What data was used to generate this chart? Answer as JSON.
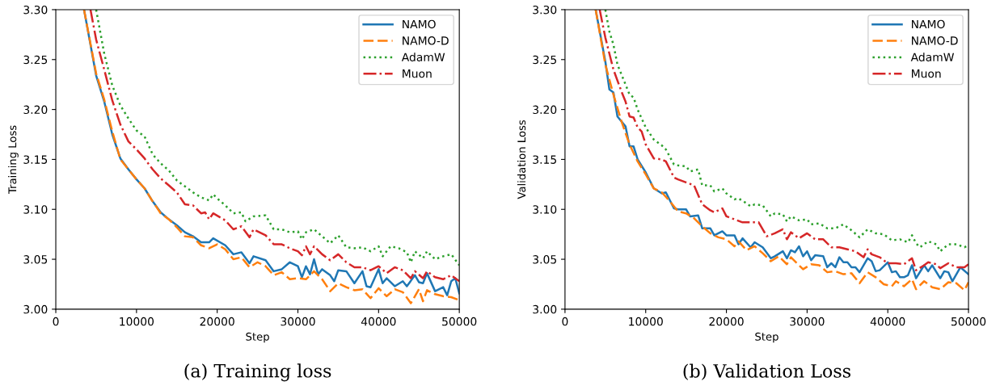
{
  "chart_data": [
    {
      "type": "line",
      "title": "(a) Training loss",
      "xlabel": "Step",
      "ylabel": "Training Loss",
      "xlim": [
        0,
        50000
      ],
      "ylim": [
        3.0,
        3.3
      ],
      "xticks": [
        0,
        10000,
        20000,
        30000,
        40000,
        50000
      ],
      "yticks": [
        {
          "value": 3.0,
          "label": "3.00"
        },
        {
          "value": 3.05,
          "label": "3.05"
        },
        {
          "value": 3.1,
          "label": "3.10"
        },
        {
          "value": 3.15,
          "label": "3.15"
        },
        {
          "value": 3.2,
          "label": "3.20"
        },
        {
          "value": 3.25,
          "label": "3.25"
        },
        {
          "value": 3.3,
          "label": "3.30"
        }
      ],
      "grid": false,
      "legend": "top right",
      "series": [
        {
          "name": "NAMO",
          "color": "#1f77b4",
          "line_style": "solid",
          "x": [
            3500,
            5000,
            6000,
            7000,
            8000,
            9000,
            10000,
            11000,
            12000,
            13000,
            14000,
            15000,
            16000,
            17000,
            18000,
            19000,
            19500,
            21000,
            22000,
            23000,
            24000,
            24500,
            26000,
            27000,
            28000,
            29000,
            30000,
            30500,
            31000,
            31500,
            32000,
            32500,
            33000,
            34000,
            34500,
            35000,
            36000,
            37000,
            38000,
            38500,
            39000,
            40000,
            40500,
            41000,
            42000,
            43000,
            43500,
            44500,
            45000,
            45500,
            46000,
            47000,
            48000,
            48500,
            49000,
            49500,
            50000
          ],
          "values": [
            3.3,
            3.234,
            3.208,
            3.175,
            3.151,
            3.14,
            3.13,
            3.121,
            3.108,
            3.097,
            3.09,
            3.084,
            3.077,
            3.073,
            3.067,
            3.067,
            3.071,
            3.064,
            3.055,
            3.057,
            3.046,
            3.053,
            3.049,
            3.038,
            3.04,
            3.047,
            3.043,
            3.032,
            3.043,
            3.035,
            3.05,
            3.035,
            3.04,
            3.034,
            3.028,
            3.039,
            3.038,
            3.026,
            3.038,
            3.023,
            3.022,
            3.04,
            3.026,
            3.031,
            3.023,
            3.028,
            3.023,
            3.034,
            3.027,
            3.026,
            3.036,
            3.018,
            3.022,
            3.014,
            3.028,
            3.031,
            3.016
          ]
        },
        {
          "name": "NAMO-D",
          "color": "#ff7f0e",
          "line_style": "dashed",
          "x": [
            3500,
            5000,
            6000,
            7000,
            8000,
            9000,
            10000,
            11000,
            12000,
            13000,
            14000,
            15000,
            16000,
            17000,
            18000,
            19000,
            20000,
            21000,
            22000,
            23000,
            24000,
            25000,
            26000,
            27000,
            28000,
            29000,
            30000,
            31000,
            32000,
            33000,
            34000,
            35000,
            36000,
            37000,
            38000,
            39000,
            40000,
            41000,
            42000,
            43000,
            44000,
            45000,
            45500,
            46000,
            47000,
            48000,
            49000,
            50000
          ],
          "values": [
            3.3,
            3.236,
            3.21,
            3.178,
            3.15,
            3.14,
            3.13,
            3.121,
            3.108,
            3.096,
            3.09,
            3.082,
            3.073,
            3.072,
            3.064,
            3.061,
            3.065,
            3.06,
            3.05,
            3.052,
            3.042,
            3.047,
            3.043,
            3.034,
            3.037,
            3.03,
            3.031,
            3.03,
            3.038,
            3.03,
            3.018,
            3.026,
            3.022,
            3.019,
            3.02,
            3.011,
            3.021,
            3.013,
            3.02,
            3.017,
            3.006,
            3.02,
            3.008,
            3.019,
            3.015,
            3.013,
            3.012,
            3.009
          ]
        },
        {
          "name": "AdamW",
          "color": "#2ca02c",
          "line_style": "dotted",
          "x": [
            5000,
            6000,
            7000,
            8000,
            9000,
            10000,
            11000,
            12000,
            13000,
            14000,
            15000,
            16000,
            17000,
            18000,
            19000,
            19500,
            20000,
            21000,
            22000,
            23000,
            23500,
            24500,
            26000,
            27000,
            28000,
            29000,
            30000,
            30500,
            31000,
            32000,
            33000,
            34000,
            35000,
            36000,
            37000,
            38000,
            39000,
            40000,
            40500,
            41500,
            42500,
            43500,
            44000,
            44500,
            45500,
            46000,
            47000,
            48000,
            49000,
            50000
          ],
          "values": [
            3.3,
            3.256,
            3.224,
            3.204,
            3.191,
            3.179,
            3.173,
            3.155,
            3.146,
            3.139,
            3.129,
            3.123,
            3.117,
            3.112,
            3.109,
            3.115,
            3.111,
            3.104,
            3.096,
            3.097,
            3.088,
            3.093,
            3.094,
            3.08,
            3.08,
            3.077,
            3.078,
            3.07,
            3.077,
            3.08,
            3.073,
            3.066,
            3.074,
            3.062,
            3.061,
            3.062,
            3.058,
            3.063,
            3.053,
            3.063,
            3.061,
            3.057,
            3.047,
            3.058,
            3.051,
            3.058,
            3.05,
            3.053,
            3.055,
            3.044
          ]
        },
        {
          "name": "Muon",
          "color": "#d62728",
          "line_style": "dashdot",
          "x": [
            4300,
            5000,
            6000,
            7000,
            8000,
            9000,
            10000,
            11000,
            12000,
            13000,
            14000,
            15000,
            16000,
            17000,
            18000,
            18500,
            19000,
            19500,
            21000,
            22000,
            23000,
            24000,
            24500,
            26000,
            27000,
            28000,
            29000,
            30000,
            30500,
            31000,
            31500,
            32000,
            33000,
            34000,
            35000,
            36000,
            37000,
            38000,
            39000,
            40000,
            41000,
            42000,
            43000,
            44000,
            44500,
            45500,
            46000,
            47000,
            48000,
            49000,
            50000
          ],
          "values": [
            3.3,
            3.27,
            3.24,
            3.209,
            3.185,
            3.168,
            3.16,
            3.151,
            3.14,
            3.131,
            3.124,
            3.117,
            3.105,
            3.104,
            3.096,
            3.097,
            3.09,
            3.096,
            3.089,
            3.08,
            3.083,
            3.072,
            3.08,
            3.074,
            3.065,
            3.065,
            3.061,
            3.058,
            3.054,
            3.063,
            3.055,
            3.063,
            3.055,
            3.049,
            3.055,
            3.047,
            3.042,
            3.042,
            3.039,
            3.043,
            3.036,
            3.042,
            3.039,
            3.031,
            3.038,
            3.031,
            3.038,
            3.032,
            3.03,
            3.034,
            3.028
          ]
        }
      ]
    },
    {
      "type": "line",
      "title": "(b) Validation Loss",
      "xlabel": "Step",
      "ylabel": "Validation Loss",
      "xlim": [
        0,
        50000
      ],
      "ylim": [
        3.0,
        3.3
      ],
      "xticks": [
        0,
        10000,
        20000,
        30000,
        40000,
        50000
      ],
      "yticks": [
        {
          "value": 3.0,
          "label": "3.00"
        },
        {
          "value": 3.05,
          "label": "3.05"
        },
        {
          "value": 3.1,
          "label": "3.10"
        },
        {
          "value": 3.15,
          "label": "3.15"
        },
        {
          "value": 3.2,
          "label": "3.20"
        },
        {
          "value": 3.25,
          "label": "3.25"
        },
        {
          "value": 3.3,
          "label": "3.30"
        }
      ],
      "grid": false,
      "legend": "top right",
      "series": [
        {
          "name": "NAMO",
          "color": "#1f77b4",
          "line_style": "solid",
          "x": [
            3800,
            5000,
            5500,
            6000,
            6500,
            7500,
            8000,
            8500,
            9000,
            10000,
            11000,
            12000,
            12500,
            13500,
            14000,
            15000,
            15500,
            16500,
            17000,
            18000,
            18500,
            19500,
            20000,
            21000,
            21500,
            22000,
            23000,
            23500,
            24500,
            25500,
            26000,
            27000,
            27500,
            28000,
            28500,
            29000,
            29500,
            30000,
            30500,
            31000,
            32000,
            32500,
            33000,
            33500,
            34000,
            34500,
            35000,
            35500,
            36000,
            36500,
            37500,
            38000,
            38500,
            39000,
            40000,
            40500,
            41000,
            41500,
            42000,
            42500,
            43000,
            43500,
            44500,
            45000,
            45500,
            46500,
            47000,
            47500,
            48000,
            49000,
            50000
          ],
          "values": [
            3.3,
            3.248,
            3.22,
            3.217,
            3.193,
            3.183,
            3.163,
            3.163,
            3.15,
            3.137,
            3.121,
            3.116,
            3.117,
            3.101,
            3.1,
            3.1,
            3.093,
            3.094,
            3.081,
            3.081,
            3.074,
            3.078,
            3.074,
            3.074,
            3.065,
            3.071,
            3.062,
            3.067,
            3.062,
            3.051,
            3.053,
            3.058,
            3.051,
            3.059,
            3.057,
            3.063,
            3.053,
            3.058,
            3.049,
            3.054,
            3.053,
            3.042,
            3.046,
            3.042,
            3.052,
            3.047,
            3.047,
            3.042,
            3.042,
            3.037,
            3.051,
            3.048,
            3.038,
            3.039,
            3.047,
            3.037,
            3.038,
            3.032,
            3.032,
            3.034,
            3.044,
            3.031,
            3.044,
            3.038,
            3.044,
            3.031,
            3.038,
            3.037,
            3.028,
            3.042,
            3.035
          ]
        },
        {
          "name": "NAMO-D",
          "color": "#ff7f0e",
          "line_style": "dashed",
          "x": [
            3800,
            5000,
            6000,
            7000,
            8000,
            9000,
            10000,
            11000,
            12000,
            13000,
            14000,
            15000,
            16000,
            17000,
            18000,
            19000,
            20000,
            21000,
            21500,
            22500,
            23500,
            24500,
            25500,
            26500,
            27500,
            28000,
            29500,
            30500,
            31500,
            32500,
            33500,
            34500,
            35500,
            36500,
            37500,
            38500,
            39500,
            40500,
            41000,
            42000,
            43000,
            43500,
            44500,
            45500,
            46500,
            47500,
            48500,
            49500,
            50000
          ],
          "values": [
            3.3,
            3.245,
            3.215,
            3.188,
            3.165,
            3.148,
            3.135,
            3.121,
            3.117,
            3.108,
            3.098,
            3.096,
            3.091,
            3.083,
            3.076,
            3.072,
            3.07,
            3.063,
            3.068,
            3.059,
            3.063,
            3.056,
            3.048,
            3.053,
            3.045,
            3.052,
            3.04,
            3.045,
            3.044,
            3.037,
            3.038,
            3.035,
            3.036,
            3.026,
            3.037,
            3.032,
            3.025,
            3.023,
            3.028,
            3.023,
            3.03,
            3.02,
            3.028,
            3.022,
            3.02,
            3.027,
            3.026,
            3.019,
            3.027
          ]
        },
        {
          "name": "AdamW",
          "color": "#2ca02c",
          "line_style": "dotted",
          "x": [
            5000,
            5500,
            6000,
            6500,
            7000,
            7500,
            8000,
            8500,
            9000,
            10000,
            11000,
            12000,
            12500,
            13500,
            14000,
            15000,
            15500,
            16500,
            17000,
            18000,
            18500,
            19500,
            20000,
            21000,
            21500,
            22500,
            23000,
            23500,
            24500,
            25500,
            26000,
            27000,
            27500,
            28000,
            29000,
            30000,
            30500,
            31500,
            32500,
            33500,
            34500,
            35500,
            36500,
            37500,
            38500,
            39500,
            40500,
            41500,
            42500,
            43000,
            43500,
            44000,
            45000,
            46000,
            46500,
            47500,
            48500,
            49500,
            50000
          ],
          "values": [
            3.3,
            3.278,
            3.265,
            3.245,
            3.235,
            3.225,
            3.215,
            3.212,
            3.2,
            3.182,
            3.17,
            3.164,
            3.16,
            3.145,
            3.144,
            3.143,
            3.138,
            3.14,
            3.124,
            3.124,
            3.118,
            3.121,
            3.116,
            3.11,
            3.111,
            3.106,
            3.103,
            3.105,
            3.104,
            3.093,
            3.096,
            3.095,
            3.088,
            3.093,
            3.089,
            3.09,
            3.085,
            3.086,
            3.081,
            3.081,
            3.085,
            3.079,
            3.072,
            3.08,
            3.076,
            3.075,
            3.069,
            3.07,
            3.067,
            3.074,
            3.066,
            3.062,
            3.068,
            3.065,
            3.058,
            3.065,
            3.065,
            3.062,
            3.064
          ]
        },
        {
          "name": "Muon",
          "color": "#d62728",
          "line_style": "dashdot",
          "x": [
            4300,
            5000,
            6000,
            7000,
            7500,
            8000,
            8500,
            9000,
            9500,
            10000,
            11000,
            12000,
            12500,
            13500,
            14000,
            15000,
            16000,
            17000,
            18000,
            18500,
            19500,
            20000,
            21000,
            22000,
            23000,
            24000,
            25000,
            26000,
            27000,
            27500,
            28000,
            29000,
            30000,
            31000,
            32000,
            33000,
            34000,
            35000,
            36000,
            37000,
            37500,
            38000,
            39000,
            40000,
            41000,
            42000,
            43000,
            43500,
            44500,
            45000,
            46000,
            46500,
            47500,
            48500,
            49500,
            50000
          ],
          "values": [
            3.3,
            3.272,
            3.24,
            3.218,
            3.208,
            3.193,
            3.192,
            3.182,
            3.178,
            3.165,
            3.151,
            3.15,
            3.148,
            3.132,
            3.13,
            3.127,
            3.124,
            3.105,
            3.099,
            3.097,
            3.101,
            3.093,
            3.09,
            3.087,
            3.087,
            3.087,
            3.073,
            3.076,
            3.08,
            3.07,
            3.077,
            3.071,
            3.076,
            3.07,
            3.07,
            3.062,
            3.062,
            3.06,
            3.058,
            3.052,
            3.06,
            3.055,
            3.052,
            3.046,
            3.046,
            3.045,
            3.051,
            3.039,
            3.044,
            3.047,
            3.045,
            3.041,
            3.046,
            3.042,
            3.042,
            3.045
          ]
        }
      ]
    }
  ]
}
